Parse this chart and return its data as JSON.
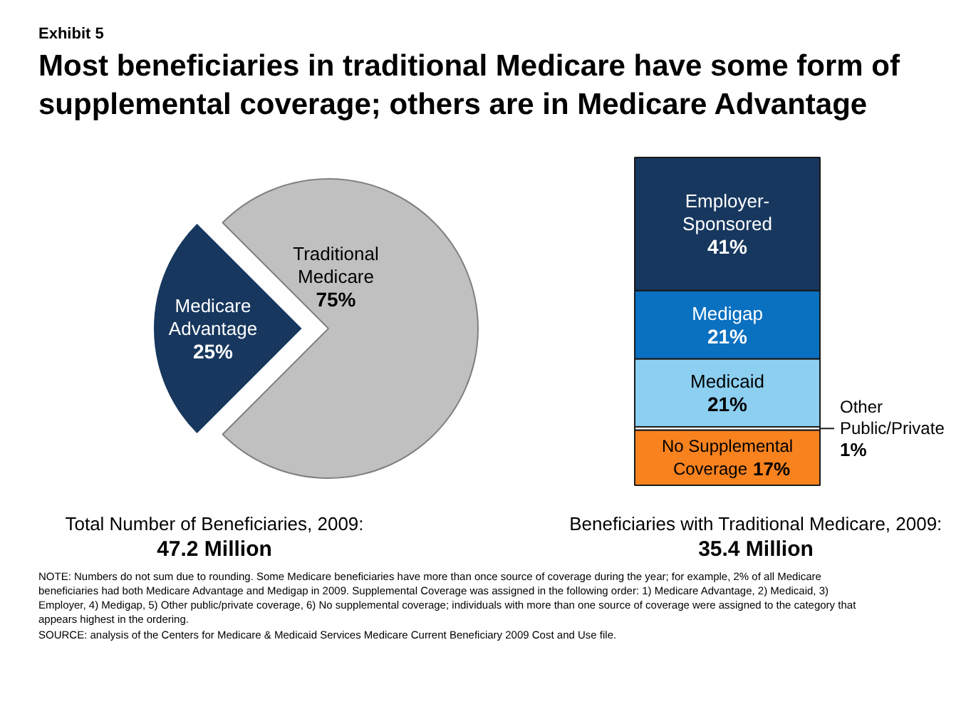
{
  "chart_data": [
    {
      "type": "pie",
      "title": "Most beneficiaries in traditional Medicare have some form of supplemental coverage; others are in Medicare Advantage",
      "annotations": [
        "Exhibit 5",
        "Total Number of Beneficiaries, 2009:",
        "47.2 Million"
      ],
      "categories": [
        "Medicare Advantage",
        "Traditional Medicare"
      ],
      "values": [
        25,
        75
      ],
      "value_labels": [
        "25%",
        "75%"
      ],
      "colors": [
        "#17375e",
        "#c0c0c0"
      ]
    },
    {
      "type": "bar",
      "stacked": true,
      "categories": [
        null
      ],
      "annotations": [
        "Beneficiaries with Traditional Medicare, 2009:",
        "35.4 Million",
        "NOTE: Numbers do not sum due to rounding.  Some Medicare beneficiaries have more than once source of coverage during the year; for example, 2% of all Medicare beneficiaries had both Medicare Advantage and Medigap in 2009.  Supplemental Coverage was assigned in the following order: 1) Medicare Advantage, 2) Medicaid, 3) Employer, 4) Medigap, 5) Other public/private coverage, 6) No supplemental coverage; individuals with more than one source of coverage were assigned to the category that appears highest in the ordering.",
        "SOURCE: analysis of the Centers for Medicare & Medicaid Services Medicare Current Beneficiary 2009 Cost and Use file."
      ],
      "series": [
        {
          "name": "No Supplemental Coverage",
          "color": "#f7821e",
          "values": [
            17
          ],
          "value_labels": [
            "17%"
          ]
        },
        {
          "name": "Other Public/Private",
          "color": "#ffffff",
          "values": [
            1
          ],
          "value_labels": [
            "1%"
          ]
        },
        {
          "name": "Medicaid",
          "color": "#8ccff0",
          "values": [
            21
          ],
          "value_labels": [
            "21%"
          ]
        },
        {
          "name": "Medigap",
          "color": "#0a70c0",
          "values": [
            21
          ],
          "value_labels": [
            "21%"
          ]
        },
        {
          "name": "Employer-Sponsored",
          "color": "#17375e",
          "values": [
            41
          ],
          "value_labels": [
            "41%"
          ]
        }
      ]
    }
  ]
}
